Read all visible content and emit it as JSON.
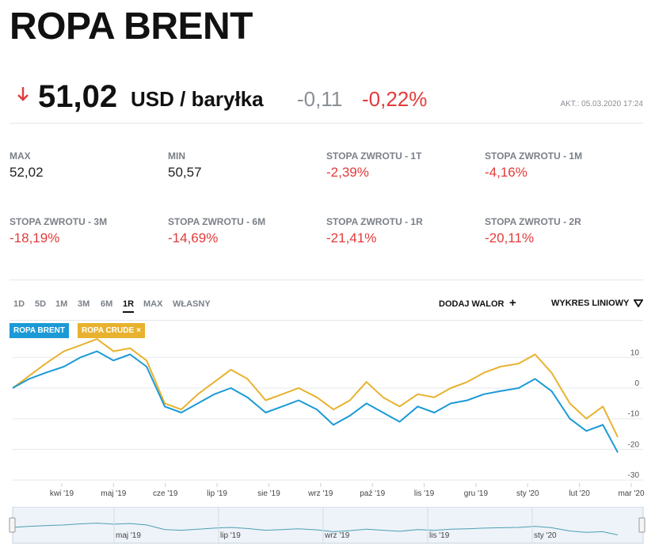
{
  "title": "ROPA BRENT",
  "quote": {
    "price": "51,02",
    "unit": "USD / baryłka",
    "change_abs": "-0,11",
    "change_pct": "-0,22%",
    "updated": "AKT.: 05.03.2020 17:24",
    "direction_icon": "arrow-down-icon"
  },
  "stats": [
    {
      "label": "MAX",
      "value": "52,02",
      "negative": false
    },
    {
      "label": "MIN",
      "value": "50,57",
      "negative": false
    },
    {
      "label": "STOPA ZWROTU - 1T",
      "value": "-2,39%",
      "negative": true
    },
    {
      "label": "STOPA ZWROTU - 1M",
      "value": "-4,16%",
      "negative": true
    },
    {
      "label": "STOPA ZWROTU - 3M",
      "value": "-18,19%",
      "negative": true
    },
    {
      "label": "STOPA ZWROTU - 6M",
      "value": "-14,69%",
      "negative": true
    },
    {
      "label": "STOPA ZWROTU - 1R",
      "value": "-21,41%",
      "negative": true
    },
    {
      "label": "STOPA ZWROTU - 2R",
      "value": "-20,11%",
      "negative": true
    }
  ],
  "toolbar": {
    "ranges": [
      "1D",
      "5D",
      "1M",
      "3M",
      "6M",
      "1R",
      "MAX",
      "WŁASNY"
    ],
    "active_range": "1R",
    "add_asset": "DODAJ WALOR",
    "chart_type": "WYKRES LINIOWY",
    "icons": {
      "add": "plus-icon",
      "chart_type": "triangle-down-icon"
    }
  },
  "legend": {
    "brent": "ROPA BRENT",
    "crude": "ROPA CRUDE",
    "close_glyph": "×"
  },
  "colors": {
    "brent": "#1b9ad6",
    "crude": "#e8b22e",
    "negative": "#e23b3b",
    "muted": "#8a8f96"
  },
  "chart_data": {
    "type": "line",
    "x": [
      "2019-03-05",
      "2019-03-15",
      "2019-03-25",
      "2019-04-05",
      "2019-04-15",
      "2019-04-25",
      "2019-05-05",
      "2019-05-15",
      "2019-05-25",
      "2019-06-05",
      "2019-06-15",
      "2019-06-25",
      "2019-07-05",
      "2019-07-15",
      "2019-07-25",
      "2019-08-05",
      "2019-08-15",
      "2019-08-25",
      "2019-09-05",
      "2019-09-15",
      "2019-09-25",
      "2019-10-05",
      "2019-10-15",
      "2019-10-25",
      "2019-11-05",
      "2019-11-15",
      "2019-11-25",
      "2019-12-05",
      "2019-12-15",
      "2019-12-25",
      "2020-01-05",
      "2020-01-15",
      "2020-01-25",
      "2020-02-05",
      "2020-02-15",
      "2020-02-25",
      "2020-03-05"
    ],
    "series": [
      {
        "name": "ROPA BRENT",
        "values": [
          0,
          3,
          5,
          7,
          10,
          12,
          9,
          11,
          7,
          -6,
          -8,
          -5,
          -2,
          0,
          -3,
          -8,
          -6,
          -4,
          -7,
          -12,
          -9,
          -5,
          -8,
          -11,
          -6,
          -8,
          -5,
          -4,
          -2,
          -1,
          0,
          3,
          -1,
          -10,
          -14,
          -12,
          -21
        ]
      },
      {
        "name": "ROPA CRUDE",
        "values": [
          0,
          4,
          8,
          12,
          14,
          16,
          12,
          13,
          9,
          -5,
          -7,
          -2,
          2,
          6,
          3,
          -4,
          -2,
          0,
          -3,
          -7,
          -4,
          2,
          -3,
          -6,
          -2,
          -3,
          0,
          2,
          5,
          7,
          8,
          11,
          5,
          -5,
          -10,
          -6,
          -16
        ]
      }
    ],
    "xlabel": "",
    "ylabel": "",
    "ylim": [
      -31,
      15
    ],
    "y_ticks": [
      10,
      0,
      -10,
      -20,
      -30
    ],
    "x_tick_labels": [
      "kwi '19",
      "maj '19",
      "cze '19",
      "lip '19",
      "sie '19",
      "wrz '19",
      "paź '19",
      "lis '19",
      "gru '19",
      "sty '20",
      "lut '20",
      "mar '20"
    ],
    "grid": true,
    "legend_position": "top-left",
    "navigator_labels": [
      "maj '19",
      "lip '19",
      "wrz '19",
      "lis '19",
      "sty '20"
    ]
  }
}
